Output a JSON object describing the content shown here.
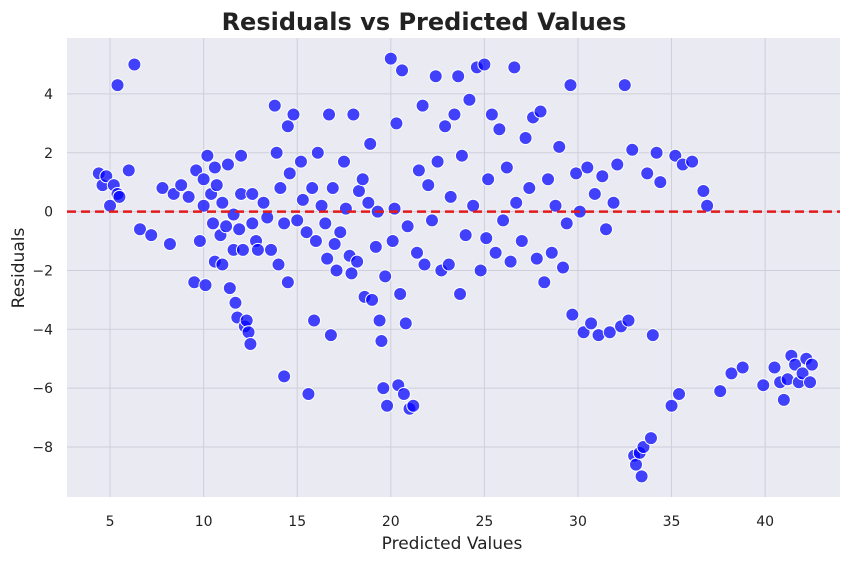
{
  "chart_data": {
    "type": "scatter",
    "title": "Residuals vs Predicted Values",
    "xlabel": "Predicted Values",
    "ylabel": "Residuals",
    "xlim": [
      2.7,
      44.0
    ],
    "ylim": [
      -9.7,
      5.9
    ],
    "xticks": [
      5,
      10,
      15,
      20,
      25,
      30,
      35,
      40
    ],
    "yticks": [
      -8,
      -6,
      -4,
      -2,
      0,
      2,
      4
    ],
    "grid": true,
    "reference_line": {
      "y": 0,
      "color": "#e31a1c",
      "style": "dashed"
    },
    "colors": {
      "marker": "#0000ff",
      "background": "#eaeaf2",
      "grid": "#cfcfdc"
    },
    "points": [
      [
        4.4,
        1.3
      ],
      [
        4.6,
        0.9
      ],
      [
        4.8,
        1.2
      ],
      [
        5.0,
        0.2
      ],
      [
        5.2,
        0.9
      ],
      [
        5.4,
        0.6
      ],
      [
        5.4,
        4.3
      ],
      [
        5.5,
        0.5
      ],
      [
        6.0,
        1.4
      ],
      [
        6.3,
        5.0
      ],
      [
        6.6,
        -0.6
      ],
      [
        7.2,
        -0.8
      ],
      [
        7.8,
        0.8
      ],
      [
        8.2,
        -1.1
      ],
      [
        8.4,
        0.6
      ],
      [
        8.8,
        0.9
      ],
      [
        9.2,
        0.5
      ],
      [
        9.5,
        -2.4
      ],
      [
        9.6,
        1.4
      ],
      [
        9.8,
        -1.0
      ],
      [
        10.0,
        0.2
      ],
      [
        10.0,
        1.1
      ],
      [
        10.1,
        -2.5
      ],
      [
        10.2,
        1.9
      ],
      [
        10.4,
        0.6
      ],
      [
        10.5,
        -0.4
      ],
      [
        10.6,
        -1.7
      ],
      [
        10.6,
        1.5
      ],
      [
        10.7,
        0.9
      ],
      [
        10.9,
        -0.8
      ],
      [
        11.0,
        -1.8
      ],
      [
        11.0,
        0.3
      ],
      [
        11.2,
        -0.5
      ],
      [
        11.3,
        1.6
      ],
      [
        11.4,
        -2.6
      ],
      [
        11.6,
        -0.1
      ],
      [
        11.6,
        -1.3
      ],
      [
        11.7,
        -3.1
      ],
      [
        11.8,
        -3.6
      ],
      [
        11.9,
        -0.6
      ],
      [
        12.0,
        1.9
      ],
      [
        12.0,
        0.6
      ],
      [
        12.1,
        -1.3
      ],
      [
        12.2,
        -3.9
      ],
      [
        12.3,
        -3.7
      ],
      [
        12.4,
        -4.1
      ],
      [
        12.5,
        -4.5
      ],
      [
        12.6,
        -0.4
      ],
      [
        12.6,
        0.6
      ],
      [
        12.8,
        -1.0
      ],
      [
        12.9,
        -1.3
      ],
      [
        13.2,
        0.3
      ],
      [
        13.4,
        -0.2
      ],
      [
        13.6,
        -1.3
      ],
      [
        13.8,
        3.6
      ],
      [
        13.9,
        2.0
      ],
      [
        14.0,
        -1.8
      ],
      [
        14.1,
        0.8
      ],
      [
        14.3,
        -0.4
      ],
      [
        14.3,
        -5.6
      ],
      [
        14.5,
        2.9
      ],
      [
        14.5,
        -2.4
      ],
      [
        14.6,
        1.3
      ],
      [
        14.8,
        3.3
      ],
      [
        15.0,
        -0.3
      ],
      [
        15.2,
        1.7
      ],
      [
        15.3,
        0.4
      ],
      [
        15.5,
        -0.7
      ],
      [
        15.6,
        -6.2
      ],
      [
        15.8,
        0.8
      ],
      [
        15.9,
        -3.7
      ],
      [
        16.0,
        -1.0
      ],
      [
        16.1,
        2.0
      ],
      [
        16.3,
        0.2
      ],
      [
        16.5,
        -0.4
      ],
      [
        16.6,
        -1.6
      ],
      [
        16.7,
        3.3
      ],
      [
        16.8,
        -4.2
      ],
      [
        16.9,
        0.8
      ],
      [
        17.0,
        -1.1
      ],
      [
        17.1,
        -2.0
      ],
      [
        17.3,
        -0.7
      ],
      [
        17.5,
        1.7
      ],
      [
        17.6,
        0.1
      ],
      [
        17.8,
        -1.5
      ],
      [
        17.9,
        -2.1
      ],
      [
        18.0,
        3.3
      ],
      [
        18.2,
        -1.7
      ],
      [
        18.3,
        0.7
      ],
      [
        18.5,
        1.1
      ],
      [
        18.6,
        -2.9
      ],
      [
        18.8,
        0.3
      ],
      [
        18.9,
        2.3
      ],
      [
        19.0,
        -3.0
      ],
      [
        19.2,
        -1.2
      ],
      [
        19.3,
        0.0
      ],
      [
        19.4,
        -3.7
      ],
      [
        19.5,
        -4.4
      ],
      [
        19.6,
        -6.0
      ],
      [
        19.7,
        -2.2
      ],
      [
        19.8,
        -6.6
      ],
      [
        20.0,
        5.2
      ],
      [
        20.1,
        -1.0
      ],
      [
        20.2,
        0.1
      ],
      [
        20.3,
        3.0
      ],
      [
        20.4,
        -5.9
      ],
      [
        20.5,
        -2.8
      ],
      [
        20.6,
        4.8
      ],
      [
        20.7,
        -6.2
      ],
      [
        20.8,
        -3.8
      ],
      [
        20.9,
        -0.5
      ],
      [
        21.0,
        -6.7
      ],
      [
        21.2,
        -6.6
      ],
      [
        21.4,
        -1.4
      ],
      [
        21.5,
        1.4
      ],
      [
        21.7,
        3.6
      ],
      [
        21.8,
        -1.8
      ],
      [
        22.0,
        0.9
      ],
      [
        22.2,
        -0.3
      ],
      [
        22.4,
        4.6
      ],
      [
        22.5,
        1.7
      ],
      [
        22.7,
        -2.0
      ],
      [
        22.9,
        2.9
      ],
      [
        23.1,
        -1.8
      ],
      [
        23.2,
        0.5
      ],
      [
        23.4,
        3.3
      ],
      [
        23.6,
        4.6
      ],
      [
        23.7,
        -2.8
      ],
      [
        23.8,
        1.9
      ],
      [
        24.0,
        -0.8
      ],
      [
        24.2,
        3.8
      ],
      [
        24.4,
        0.2
      ],
      [
        24.6,
        4.9
      ],
      [
        24.8,
        -2.0
      ],
      [
        25.0,
        5.0
      ],
      [
        25.1,
        -0.9
      ],
      [
        25.2,
        1.1
      ],
      [
        25.4,
        3.3
      ],
      [
        25.6,
        -1.4
      ],
      [
        25.8,
        2.8
      ],
      [
        26.0,
        -0.3
      ],
      [
        26.2,
        1.5
      ],
      [
        26.4,
        -1.7
      ],
      [
        26.6,
        4.9
      ],
      [
        26.7,
        0.3
      ],
      [
        27.0,
        -1.0
      ],
      [
        27.2,
        2.5
      ],
      [
        27.4,
        0.8
      ],
      [
        27.6,
        3.2
      ],
      [
        27.8,
        -1.6
      ],
      [
        28.0,
        3.4
      ],
      [
        28.2,
        -2.4
      ],
      [
        28.4,
        1.1
      ],
      [
        28.6,
        -1.4
      ],
      [
        28.8,
        0.2
      ],
      [
        29.0,
        2.2
      ],
      [
        29.2,
        -1.9
      ],
      [
        29.4,
        -0.4
      ],
      [
        29.6,
        4.3
      ],
      [
        29.7,
        -3.5
      ],
      [
        29.9,
        1.3
      ],
      [
        30.1,
        0.0
      ],
      [
        30.3,
        -4.1
      ],
      [
        30.5,
        1.5
      ],
      [
        30.7,
        -3.8
      ],
      [
        30.9,
        0.6
      ],
      [
        31.1,
        -4.2
      ],
      [
        31.3,
        1.2
      ],
      [
        31.5,
        -0.6
      ],
      [
        31.7,
        -4.1
      ],
      [
        31.9,
        0.3
      ],
      [
        32.1,
        1.6
      ],
      [
        32.3,
        -3.9
      ],
      [
        32.5,
        4.3
      ],
      [
        32.7,
        -3.7
      ],
      [
        32.9,
        2.1
      ],
      [
        33.0,
        -8.3
      ],
      [
        33.1,
        -8.6
      ],
      [
        33.3,
        -8.2
      ],
      [
        33.4,
        -9.0
      ],
      [
        33.5,
        -8.0
      ],
      [
        33.7,
        1.3
      ],
      [
        33.9,
        -7.7
      ],
      [
        34.0,
        -4.2
      ],
      [
        34.2,
        2.0
      ],
      [
        34.4,
        1.0
      ],
      [
        35.0,
        -6.6
      ],
      [
        35.2,
        1.9
      ],
      [
        35.4,
        -6.2
      ],
      [
        35.6,
        1.6
      ],
      [
        36.1,
        1.7
      ],
      [
        36.7,
        0.7
      ],
      [
        36.9,
        0.2
      ],
      [
        37.6,
        -6.1
      ],
      [
        38.2,
        -5.5
      ],
      [
        38.8,
        -5.3
      ],
      [
        39.9,
        -5.9
      ],
      [
        40.5,
        -5.3
      ],
      [
        40.8,
        -5.8
      ],
      [
        41.0,
        -6.4
      ],
      [
        41.2,
        -5.7
      ],
      [
        41.4,
        -4.9
      ],
      [
        41.6,
        -5.2
      ],
      [
        41.8,
        -5.8
      ],
      [
        42.0,
        -5.5
      ],
      [
        42.2,
        -5.0
      ],
      [
        42.4,
        -5.8
      ],
      [
        42.5,
        -5.2
      ]
    ]
  }
}
